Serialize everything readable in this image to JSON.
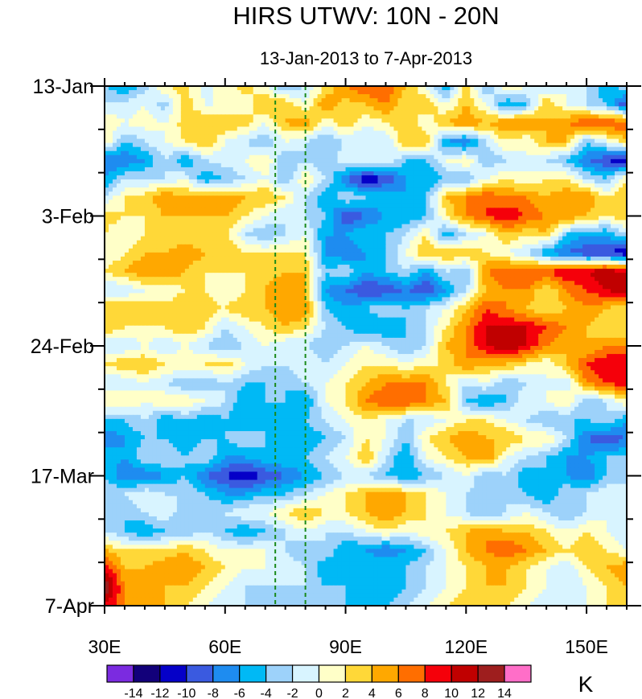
{
  "chart_data": {
    "type": "heatmap",
    "title": "HIRS UTWV: 10N - 20N",
    "subtitle": "13-Jan-2013 to 7-Apr-2013",
    "x_axis": {
      "range": [
        30,
        160
      ],
      "tick_values": [
        30,
        60,
        90,
        120,
        150
      ],
      "tick_labels": [
        "30E",
        "60E",
        "90E",
        "120E",
        "150E"
      ]
    },
    "y_axis": {
      "orientation": "time runs downward",
      "range_days": [
        0,
        84
      ],
      "tick_days": [
        0,
        21,
        42,
        63,
        84
      ],
      "tick_labels": [
        "13-Jan",
        "3-Feb",
        "24-Feb",
        "17-Mar",
        "7-Apr"
      ]
    },
    "reference_lines_lon": [
      72.5,
      80
    ],
    "colorbar": {
      "unit": "K",
      "levels": [
        -14,
        -12,
        -10,
        -8,
        -6,
        -4,
        -2,
        0,
        2,
        4,
        6,
        8,
        10,
        12,
        14
      ],
      "labels": [
        "-14",
        "-12",
        "-10",
        "-8",
        "-6",
        "-4",
        "-2",
        "0",
        "2",
        "4",
        "6",
        "8",
        "10",
        "12",
        "14"
      ],
      "colors": [
        "#7b2be0",
        "#12007a",
        "#0500c8",
        "#3a5ae0",
        "#1e8cf0",
        "#00b9f5",
        "#9dd2fa",
        "#d8f4ff",
        "#ffffc8",
        "#ffd838",
        "#ffa800",
        "#ff6e00",
        "#f5000a",
        "#c00000",
        "#9e1e1e",
        "#ff6ec8"
      ]
    },
    "anomaly_field": {
      "grid_lon_step": 5,
      "grid_lon_start": 30,
      "grid_day_step": 3,
      "rows": [
        [
          -4,
          -6,
          -3,
          2,
          3,
          -1,
          1,
          3,
          0,
          -4,
          -2,
          2,
          6,
          8,
          8,
          4,
          0,
          -6,
          3,
          -4,
          2,
          0,
          -2,
          0,
          -2,
          -6,
          -2
        ],
        [
          -2,
          -1,
          0,
          -3,
          3,
          0,
          0,
          1,
          4,
          4,
          0,
          6,
          3,
          4,
          6,
          2,
          4,
          0,
          4,
          0,
          -6,
          -4,
          4,
          0,
          -2,
          -4,
          -10
        ],
        [
          2,
          0,
          1,
          0,
          3,
          4,
          4,
          3,
          0,
          4,
          6,
          0,
          4,
          0,
          2,
          4,
          0,
          4,
          6,
          4,
          6,
          6,
          4,
          6,
          8,
          8,
          8
        ],
        [
          2,
          -4,
          -2,
          0,
          2,
          4,
          0,
          -2,
          -4,
          0,
          -2,
          -4,
          -2,
          -2,
          -2,
          4,
          4,
          -6,
          -8,
          -2,
          2,
          0,
          4,
          4,
          -4,
          0,
          3
        ],
        [
          -8,
          -8,
          -6,
          -2,
          -6,
          -2,
          -1,
          0,
          2,
          -4,
          -2,
          -4,
          0,
          0,
          0,
          -4,
          -4,
          0,
          2,
          -4,
          -2,
          0,
          -2,
          -4,
          -8,
          -10,
          -12
        ],
        [
          -6,
          -2,
          -2,
          -2,
          0,
          -6,
          -4,
          -2,
          0,
          -4,
          2,
          -2,
          -8,
          -12,
          -10,
          -6,
          -6,
          -4,
          -4,
          0,
          2,
          0,
          2,
          2,
          -2,
          -4,
          2
        ],
        [
          -2,
          2,
          3,
          6,
          4,
          6,
          6,
          4,
          4,
          2,
          -2,
          -6,
          -2,
          -4,
          -4,
          -6,
          -4,
          4,
          6,
          8,
          6,
          6,
          4,
          6,
          6,
          2,
          4
        ],
        [
          3,
          2,
          2,
          4,
          4,
          4,
          4,
          2,
          0,
          -2,
          -2,
          -4,
          -10,
          -8,
          -6,
          -6,
          -4,
          2,
          6,
          8,
          10,
          8,
          6,
          6,
          4,
          2,
          4
        ],
        [
          2,
          0,
          2,
          2,
          2,
          2,
          3,
          -2,
          -4,
          -2,
          0,
          -6,
          -6,
          -4,
          -4,
          -2,
          2,
          -6,
          -2,
          0,
          4,
          2,
          4,
          -4,
          -6,
          -6,
          -2
        ],
        [
          0,
          2,
          4,
          4,
          6,
          4,
          4,
          2,
          2,
          2,
          2,
          -6,
          -8,
          -6,
          -4,
          0,
          4,
          4,
          4,
          2,
          0,
          -2,
          -6,
          -8,
          -10,
          -10,
          -12
        ],
        [
          2,
          4,
          6,
          6,
          4,
          2,
          2,
          2,
          3,
          4,
          4,
          -4,
          -2,
          -6,
          -4,
          -2,
          -6,
          -2,
          -4,
          6,
          8,
          8,
          8,
          10,
          10,
          12,
          10
        ],
        [
          -2,
          -2,
          0,
          0,
          2,
          2,
          0,
          2,
          4,
          6,
          4,
          -6,
          -8,
          -10,
          -10,
          -8,
          -10,
          -6,
          -2,
          4,
          6,
          6,
          2,
          6,
          8,
          10,
          12
        ],
        [
          4,
          4,
          4,
          3,
          4,
          3,
          2,
          4,
          4,
          6,
          6,
          -4,
          -6,
          -4,
          -2,
          -4,
          -2,
          0,
          4,
          8,
          6,
          4,
          2,
          4,
          6,
          4,
          2
        ],
        [
          4,
          2,
          2,
          2,
          4,
          2,
          -2,
          0,
          2,
          4,
          2,
          -2,
          -4,
          -6,
          -6,
          -4,
          -2,
          2,
          6,
          10,
          10,
          10,
          8,
          6,
          4,
          2,
          2
        ],
        [
          -2,
          -2,
          0,
          -2,
          0,
          -2,
          -4,
          -2,
          0,
          -2,
          -2,
          -4,
          -2,
          0,
          -2,
          -4,
          -2,
          4,
          6,
          10,
          12,
          10,
          6,
          4,
          4,
          6,
          6
        ],
        [
          2,
          4,
          4,
          2,
          2,
          2,
          3,
          0,
          -2,
          -2,
          0,
          -2,
          0,
          2,
          2,
          0,
          2,
          2,
          6,
          4,
          4,
          2,
          0,
          4,
          8,
          10,
          10
        ],
        [
          -2,
          -2,
          0,
          -2,
          -4,
          -4,
          -2,
          -4,
          -4,
          -4,
          -2,
          0,
          2,
          4,
          6,
          6,
          6,
          2,
          -2,
          0,
          -4,
          -2,
          0,
          -2,
          6,
          8,
          10
        ],
        [
          2,
          2,
          0,
          2,
          2,
          0,
          -2,
          -6,
          -4,
          -4,
          -6,
          0,
          2,
          6,
          8,
          8,
          6,
          4,
          -4,
          -6,
          -4,
          0,
          0,
          2,
          -4,
          -2,
          2
        ],
        [
          -4,
          -4,
          -2,
          -6,
          -4,
          -6,
          -4,
          -6,
          -4,
          -6,
          -4,
          -2,
          0,
          2,
          0,
          -2,
          -2,
          0,
          2,
          2,
          0,
          -2,
          -4,
          -4,
          -4,
          -2,
          -6
        ],
        [
          -8,
          -6,
          -4,
          -4,
          -6,
          -4,
          -4,
          -2,
          -4,
          -6,
          -6,
          -4,
          -2,
          2,
          0,
          -4,
          2,
          4,
          6,
          4,
          4,
          2,
          2,
          -2,
          -8,
          -10,
          -8
        ],
        [
          -4,
          -6,
          -2,
          -2,
          -4,
          -2,
          -6,
          -6,
          -4,
          -4,
          -4,
          -2,
          0,
          4,
          -2,
          -6,
          0,
          2,
          4,
          6,
          0,
          -2,
          -4,
          -6,
          -6,
          -4,
          -4
        ],
        [
          -4,
          -8,
          -8,
          -6,
          -4,
          -8,
          -10,
          -12,
          -10,
          -8,
          -6,
          -4,
          -2,
          -2,
          -4,
          -6,
          -4,
          -2,
          0,
          -4,
          -2,
          -6,
          -4,
          -6,
          -8,
          -4,
          -2
        ],
        [
          -2,
          -2,
          0,
          -2,
          -2,
          -4,
          -6,
          -6,
          -4,
          -4,
          -2,
          0,
          2,
          4,
          6,
          4,
          2,
          0,
          -2,
          -4,
          -2,
          -4,
          -6,
          -2,
          -2,
          0,
          -2
        ],
        [
          -4,
          -4,
          -2,
          0,
          -4,
          -2,
          -2,
          0,
          0,
          2,
          4,
          2,
          2,
          4,
          6,
          4,
          2,
          0,
          -2,
          -4,
          -2,
          0,
          -2,
          -4,
          -2,
          0,
          0
        ],
        [
          -2,
          -4,
          -6,
          -4,
          -4,
          -2,
          -4,
          -6,
          -4,
          -2,
          0,
          -2,
          -2,
          0,
          2,
          0,
          2,
          2,
          4,
          6,
          4,
          4,
          2,
          0,
          2,
          0,
          -2
        ],
        [
          4,
          2,
          2,
          2,
          4,
          2,
          0,
          0,
          0,
          -2,
          -4,
          -2,
          -6,
          -6,
          -8,
          -6,
          -4,
          0,
          4,
          6,
          8,
          6,
          4,
          2,
          4,
          2,
          0
        ],
        [
          10,
          4,
          4,
          6,
          6,
          4,
          2,
          0,
          0,
          0,
          -2,
          -6,
          -6,
          -4,
          -4,
          -4,
          -2,
          0,
          2,
          4,
          4,
          2,
          0,
          -2,
          2,
          4,
          6
        ],
        [
          14,
          6,
          4,
          4,
          4,
          2,
          0,
          -2,
          -2,
          -2,
          -2,
          -4,
          -4,
          -6,
          -6,
          -4,
          -2,
          0,
          2,
          4,
          4,
          2,
          0,
          -2,
          0,
          2,
          4
        ],
        [
          10,
          6,
          4,
          4,
          2,
          0,
          -2,
          -2,
          -4,
          -4,
          -2,
          -4,
          -4,
          -6,
          -4,
          -2,
          0,
          2,
          4,
          2,
          2,
          0,
          -2,
          -2,
          0,
          2,
          2
        ]
      ]
    }
  }
}
